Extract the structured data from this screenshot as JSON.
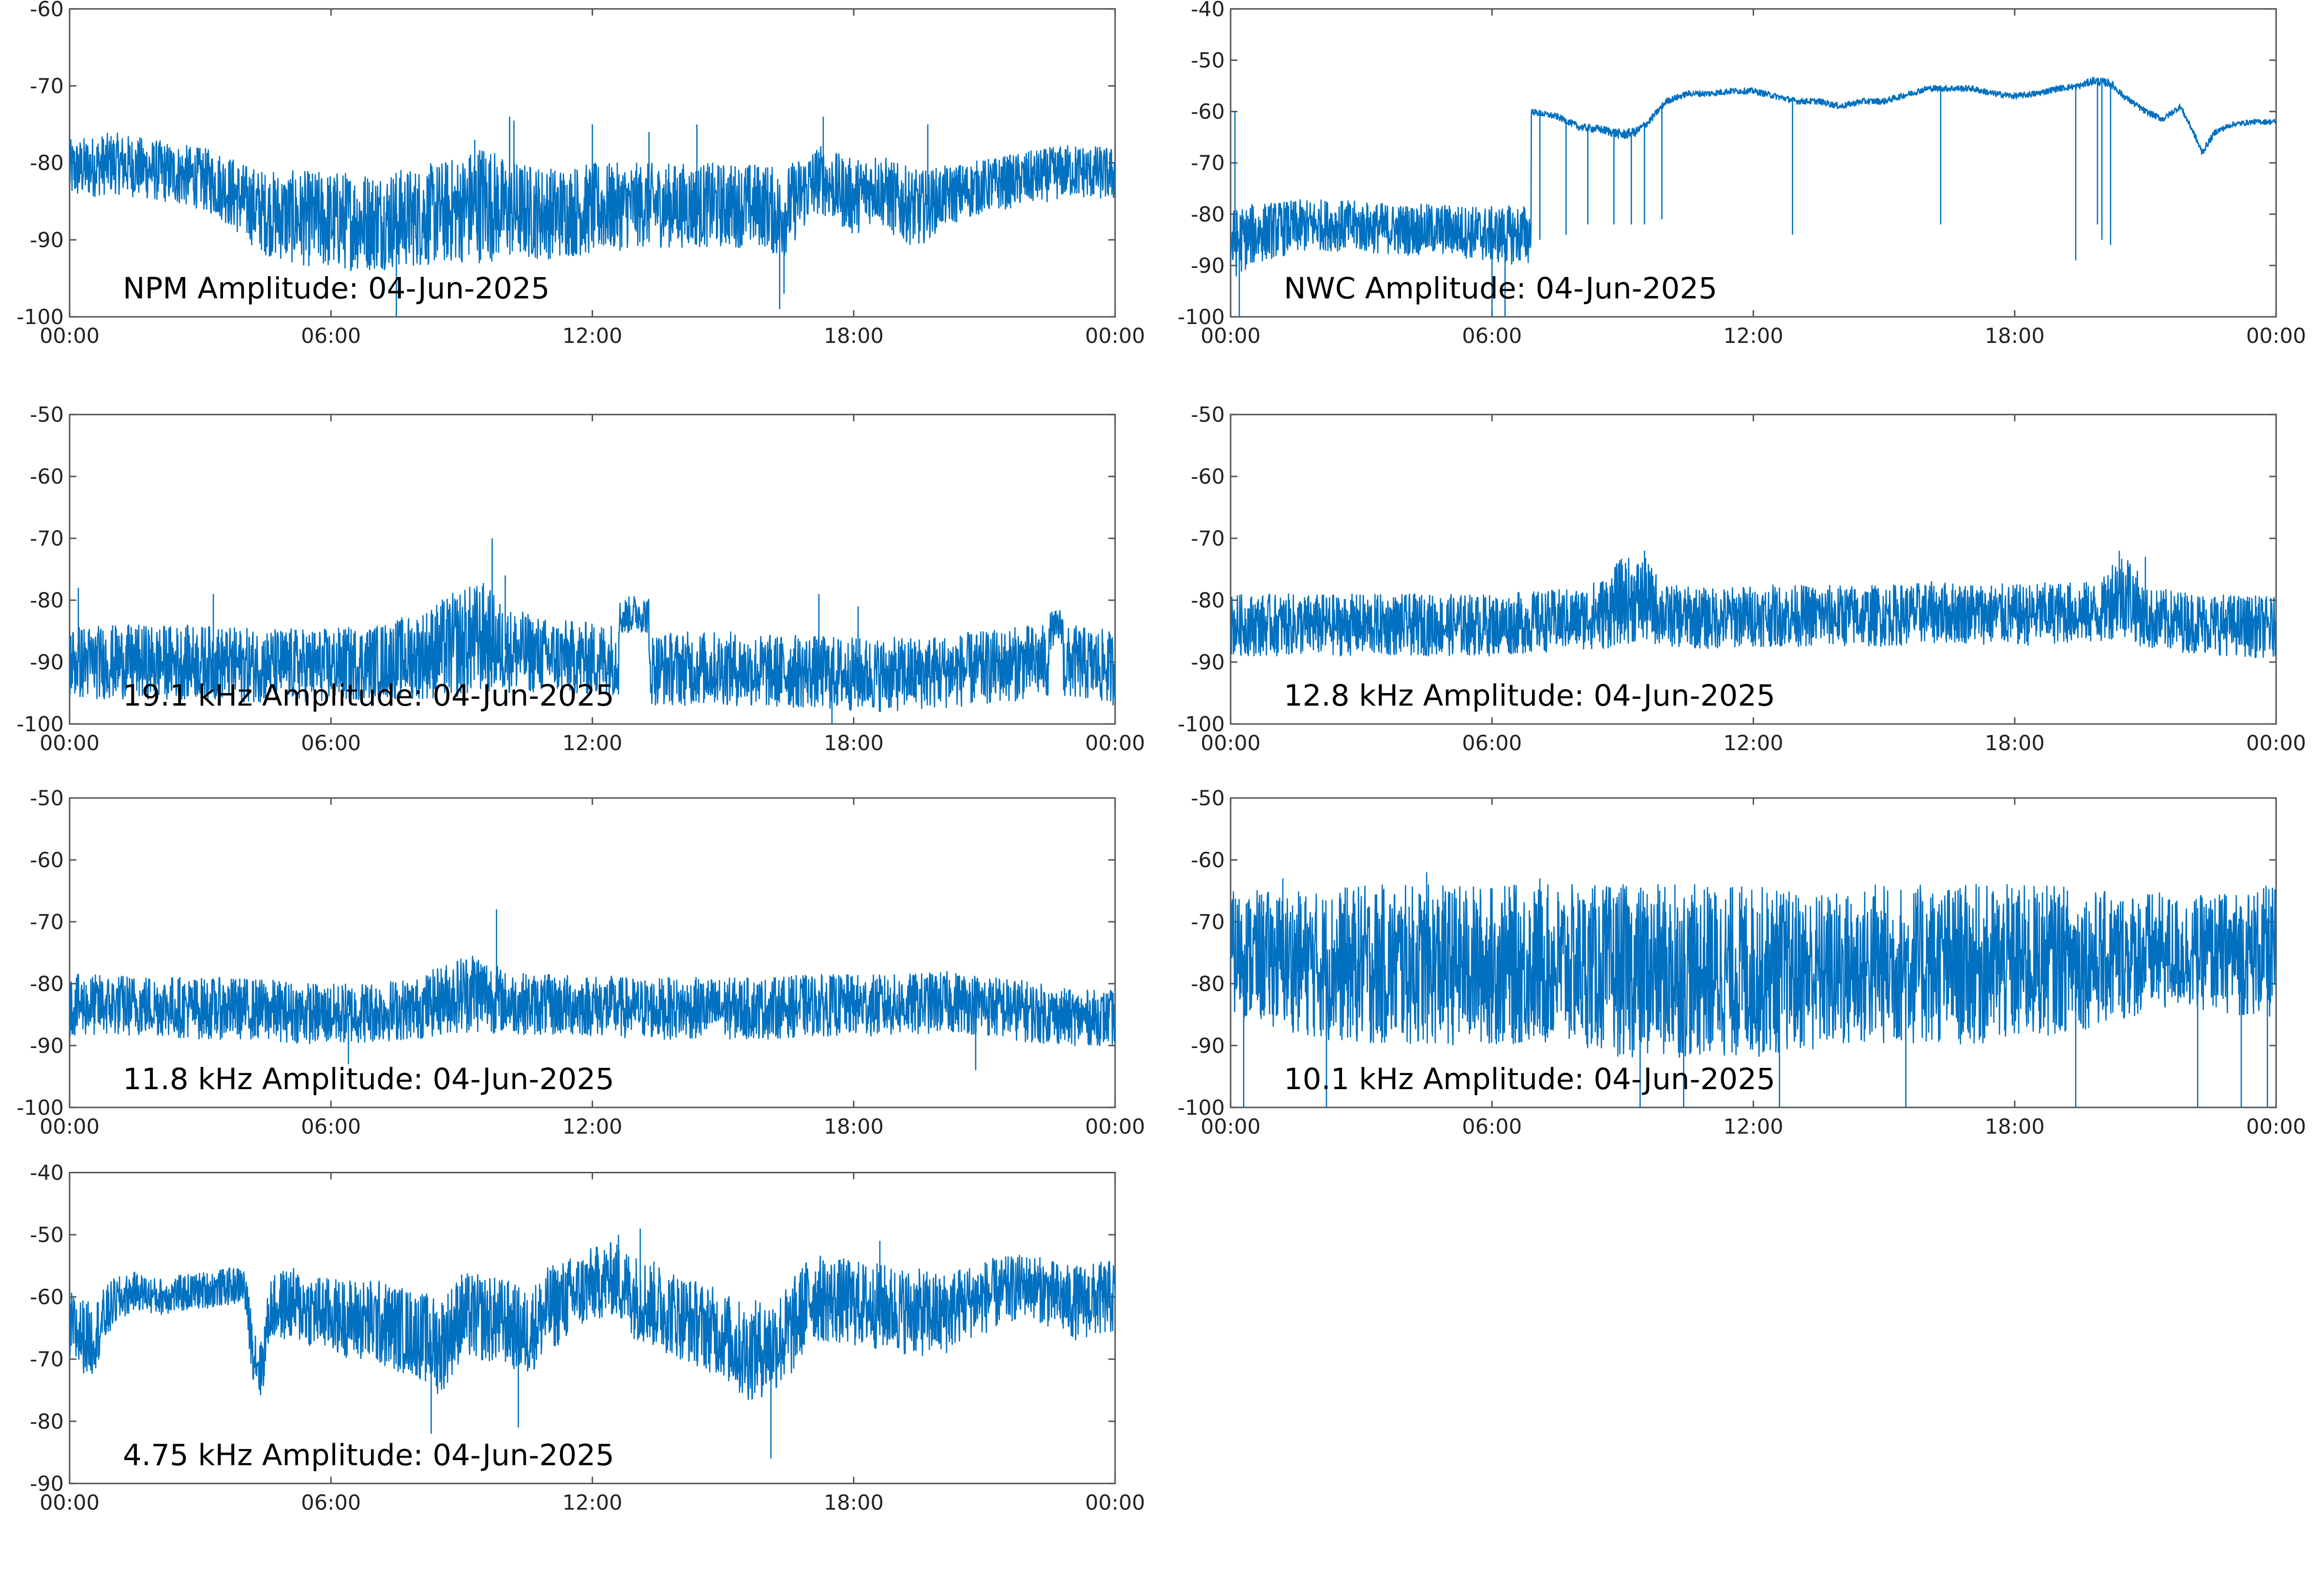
{
  "colors": {
    "series": "#0070c0",
    "frame": "#555555",
    "text": "#222222"
  },
  "chart_data": [
    {
      "type": "line",
      "title": "NPM Amplitude: 04-Jun-2025",
      "xticks": [
        "00:00",
        "06:00",
        "12:00",
        "18:00",
        "00:00"
      ],
      "xlim": [
        0,
        24
      ],
      "ylim": [
        -100,
        -60
      ],
      "yticks": [
        -60,
        -70,
        -80,
        -90,
        -100
      ],
      "grid": false,
      "series": [
        {
          "x": [
            0,
            1,
            2,
            3,
            3.5,
            4,
            4.5,
            5,
            6,
            7,
            8,
            9,
            9.5,
            10,
            11,
            12,
            13,
            14,
            15,
            16,
            16.3,
            16.8,
            17.2,
            17.5,
            18,
            18.5,
            19,
            19.5,
            20,
            21,
            22,
            23,
            24
          ],
          "y": [
            -81,
            -80,
            -81,
            -82,
            -83,
            -85,
            -86.5,
            -87,
            -87.5,
            -87.5,
            -87,
            -86,
            -85,
            -86,
            -86.5,
            -86,
            -85.5,
            -85.5,
            -85.5,
            -85.5,
            -87,
            -84,
            -82,
            -83,
            -84.5,
            -83,
            -85,
            -86,
            -84.5,
            -83,
            -82,
            -81,
            -81.5
          ],
          "spread": [
            4,
            4,
            4,
            4,
            4.5,
            5,
            5.5,
            6,
            6.5,
            6.5,
            6.5,
            7,
            8,
            6.5,
            6,
            6,
            5.5,
            5.5,
            5.5,
            5.5,
            6,
            5,
            4.5,
            4.5,
            5,
            4.5,
            5,
            5,
            4,
            3.5,
            3.5,
            3.5,
            3.5
          ],
          "spikes": [
            [
              7.5,
              -100
            ],
            [
              9.3,
              -77
            ],
            [
              10.1,
              -74
            ],
            [
              10.2,
              -74.5
            ],
            [
              12,
              -75
            ],
            [
              13.3,
              -76
            ],
            [
              14.4,
              -75
            ],
            [
              16.3,
              -99
            ],
            [
              16.4,
              -97
            ],
            [
              17.3,
              -74
            ],
            [
              19.7,
              -75
            ]
          ]
        }
      ]
    },
    {
      "type": "line",
      "title": "NWC Amplitude: 04-Jun-2025",
      "xticks": [
        "00:00",
        "06:00",
        "12:00",
        "18:00",
        "00:00"
      ],
      "xlim": [
        0,
        24
      ],
      "ylim": [
        -100,
        -40
      ],
      "yticks": [
        -40,
        -50,
        -60,
        -70,
        -80,
        -90,
        -100
      ],
      "grid": false,
      "series": [
        {
          "x": [
            0,
            0.5,
            1,
            2,
            3,
            4,
            5,
            6,
            6.9,
            6.9,
            7.5,
            8,
            8.5,
            9,
            9.3,
            9.6,
            10,
            10.5,
            11,
            11.5,
            12,
            12.5,
            13,
            13.5,
            14,
            14.5,
            15,
            16,
            17,
            17.5,
            18,
            18.5,
            19,
            19.5,
            19.8,
            20.2,
            20.5,
            21,
            21.4,
            21.8,
            22.1,
            22.3,
            22.6,
            23,
            23.5,
            24
          ],
          "y": [
            -86,
            -84,
            -83,
            -82,
            -82.5,
            -83,
            -83,
            -84,
            -84,
            -60,
            -61,
            -63,
            -63.5,
            -64.5,
            -64,
            -62,
            -58,
            -56.5,
            -56.5,
            -56,
            -56,
            -57,
            -58,
            -58,
            -59,
            -58,
            -58,
            -55.5,
            -55.5,
            -56.5,
            -57,
            -56.5,
            -55.5,
            -55,
            -54,
            -54.5,
            -57,
            -60,
            -61.5,
            -59,
            -64,
            -68,
            -64,
            -62.5,
            -62,
            -62
          ],
          "spread": [
            7,
            6,
            5.5,
            5,
            5,
            5,
            5,
            5.5,
            6,
            0.6,
            0.6,
            0.7,
            0.8,
            1,
            0.9,
            0.7,
            0.6,
            0.6,
            0.6,
            0.6,
            0.6,
            0.6,
            0.6,
            0.6,
            0.6,
            0.6,
            0.6,
            0.6,
            0.6,
            0.6,
            0.6,
            0.6,
            0.6,
            0.6,
            0.8,
            0.8,
            0.6,
            0.6,
            0.6,
            0.6,
            0.6,
            0.7,
            0.6,
            0.5,
            0.5,
            0.5
          ],
          "spikes": [
            [
              0.1,
              -60
            ],
            [
              0.2,
              -100
            ],
            [
              6,
              -100
            ],
            [
              6.3,
              -100
            ],
            [
              7.1,
              -85
            ],
            [
              7.7,
              -84
            ],
            [
              8.2,
              -82
            ],
            [
              8.8,
              -82
            ],
            [
              9.2,
              -82
            ],
            [
              9.5,
              -82
            ],
            [
              9.9,
              -81
            ],
            [
              12.9,
              -84
            ],
            [
              16.3,
              -82
            ],
            [
              19.4,
              -89
            ],
            [
              19.9,
              -82
            ],
            [
              20.0,
              -85
            ],
            [
              20.2,
              -86
            ]
          ]
        }
      ]
    },
    {
      "type": "line",
      "title": "19.1 kHz Amplitude: 04-Jun-2025",
      "xticks": [
        "00:00",
        "06:00",
        "12:00",
        "18:00",
        "00:00"
      ],
      "xlim": [
        0,
        24
      ],
      "ylim": [
        -100,
        -50
      ],
      "yticks": [
        -50,
        -60,
        -70,
        -80,
        -90,
        -100
      ],
      "grid": false,
      "series": [
        {
          "x": [
            0,
            1,
            2,
            3,
            4,
            5,
            6,
            7,
            8,
            9,
            9.5,
            10,
            11,
            12,
            12.6,
            12.6,
            13,
            13.3,
            13.3,
            14,
            15,
            16,
            17,
            18,
            19,
            20,
            21,
            22,
            22.5,
            22.5,
            22.8,
            22.8,
            23,
            24
          ],
          "y": [
            -90,
            -90,
            -90,
            -90,
            -90.5,
            -90.5,
            -90.5,
            -90,
            -89,
            -87,
            -86,
            -88,
            -89,
            -89.5,
            -89.5,
            -83,
            -82,
            -82.5,
            -91,
            -91,
            -91,
            -91.5,
            -91.5,
            -92,
            -92,
            -91.5,
            -91,
            -90,
            -90,
            -85,
            -84,
            -91,
            -90,
            -91
          ],
          "spread": [
            6,
            6,
            6,
            6,
            6,
            6,
            6,
            6,
            7,
            9,
            9,
            7,
            6,
            6,
            6,
            3,
            3,
            3,
            6,
            6,
            6,
            6,
            6,
            6,
            6,
            6,
            6,
            6,
            6,
            3,
            3,
            6,
            6,
            6
          ],
          "spikes": [
            [
              0.2,
              -78
            ],
            [
              3.3,
              -79
            ],
            [
              9.7,
              -70
            ],
            [
              10,
              -76
            ],
            [
              17.2,
              -79
            ],
            [
              18.1,
              -81
            ],
            [
              17.5,
              -100
            ]
          ]
        }
      ]
    },
    {
      "type": "line",
      "title": "12.8 kHz Amplitude: 04-Jun-2025",
      "xticks": [
        "00:00",
        "06:00",
        "12:00",
        "18:00",
        "00:00"
      ],
      "xlim": [
        0,
        24
      ],
      "ylim": [
        -100,
        -50
      ],
      "yticks": [
        -50,
        -60,
        -70,
        -80,
        -90,
        -100
      ],
      "grid": false,
      "series": [
        {
          "x": [
            0,
            1,
            2,
            3,
            4,
            5,
            6,
            7,
            8,
            8.6,
            9,
            9.5,
            10,
            11,
            12,
            13,
            14,
            15,
            16,
            17,
            18,
            19,
            20,
            20.3,
            20.6,
            21,
            22,
            23,
            24
          ],
          "y": [
            -84,
            -84,
            -84,
            -84,
            -84,
            -84,
            -84,
            -83.5,
            -83,
            -82,
            -80,
            -80,
            -82.5,
            -83,
            -82.5,
            -82.5,
            -82.5,
            -82.5,
            -82,
            -82,
            -82.5,
            -82,
            -82,
            -79,
            -79,
            -83,
            -83.5,
            -84,
            -84.5
          ],
          "spread": [
            5,
            5,
            5,
            5,
            5,
            5,
            5,
            5,
            5,
            6,
            7,
            7,
            5,
            5,
            5,
            5,
            5,
            5,
            5,
            5,
            5,
            5,
            5,
            7,
            7,
            5,
            5,
            5,
            5
          ],
          "spikes": [
            [
              9.5,
              -72
            ],
            [
              20.4,
              -72
            ],
            [
              21,
              -73
            ]
          ]
        }
      ]
    },
    {
      "type": "line",
      "title": "11.8 kHz Amplitude: 04-Jun-2025",
      "xticks": [
        "00:00",
        "06:00",
        "12:00",
        "18:00",
        "00:00"
      ],
      "xlim": [
        0,
        24
      ],
      "ylim": [
        -100,
        -50
      ],
      "yticks": [
        -50,
        -60,
        -70,
        -80,
        -90,
        -100
      ],
      "grid": false,
      "series": [
        {
          "x": [
            0,
            1,
            2,
            3,
            4,
            5,
            6,
            7,
            8,
            8.8,
            9.3,
            10,
            11,
            12,
            13,
            14,
            15,
            16,
            17,
            18,
            19,
            20,
            20.5,
            21,
            22,
            23,
            24
          ],
          "y": [
            -83.5,
            -83.5,
            -83.5,
            -84,
            -84,
            -84.5,
            -85,
            -84.5,
            -84,
            -82,
            -81,
            -83,
            -83.5,
            -83.5,
            -84,
            -84,
            -84,
            -84,
            -83.5,
            -83.5,
            -83.5,
            -83,
            -83,
            -83.5,
            -84.5,
            -85.5,
            -85.5
          ],
          "spread": [
            5,
            5,
            5,
            5,
            5,
            5,
            5,
            5,
            5,
            6,
            7,
            5,
            5,
            5,
            5,
            5,
            5,
            5,
            5,
            5,
            5,
            5,
            5,
            5,
            5,
            4.5,
            4.5
          ],
          "spikes": [
            [
              9.8,
              -68
            ],
            [
              6.4,
              -93
            ],
            [
              20.8,
              -94
            ]
          ]
        }
      ]
    },
    {
      "type": "line",
      "title": "10.1 kHz Amplitude: 04-Jun-2025",
      "xticks": [
        "00:00",
        "06:00",
        "12:00",
        "18:00",
        "00:00"
      ],
      "xlim": [
        0,
        24
      ],
      "ylim": [
        -100,
        -50
      ],
      "yticks": [
        -50,
        -60,
        -70,
        -80,
        -90,
        -100
      ],
      "grid": false,
      "series": [
        {
          "x": [
            0,
            1,
            2,
            3,
            4,
            5,
            6,
            7,
            8,
            9,
            10,
            11,
            12,
            13,
            14,
            15,
            16,
            17,
            18,
            19,
            20,
            21,
            22,
            23,
            24
          ],
          "y": [
            -75,
            -76,
            -77,
            -77,
            -77,
            -77,
            -77,
            -77,
            -77,
            -78,
            -78,
            -78,
            -78,
            -78,
            -78,
            -77,
            -77,
            -77,
            -77,
            -76,
            -76,
            -75,
            -75,
            -75,
            -75
          ],
          "spread": [
            10,
            11,
            12,
            13,
            13,
            13,
            13,
            13,
            13,
            14,
            14,
            14,
            14,
            13,
            13,
            13,
            13,
            13,
            13,
            12,
            11,
            10,
            9,
            10,
            11
          ],
          "spikes": [
            [
              1.2,
              -63
            ],
            [
              4.5,
              -62
            ],
            [
              7.1,
              -63
            ],
            [
              10.2,
              -64
            ],
            [
              14.8,
              -64
            ],
            [
              0.3,
              -100
            ],
            [
              2.2,
              -100
            ],
            [
              9.4,
              -100
            ],
            [
              10.4,
              -100
            ],
            [
              12.6,
              -100
            ],
            [
              15.5,
              -100
            ],
            [
              19.4,
              -100
            ],
            [
              22.2,
              -100
            ],
            [
              23.2,
              -100
            ],
            [
              23.8,
              -100
            ]
          ]
        }
      ]
    },
    {
      "type": "line",
      "title": "4.75 kHz Amplitude: 04-Jun-2025",
      "xticks": [
        "00:00",
        "06:00",
        "12:00",
        "18:00",
        "00:00"
      ],
      "xlim": [
        0,
        24
      ],
      "ylim": [
        -90,
        -40
      ],
      "yticks": [
        -40,
        -50,
        -60,
        -70,
        -80,
        -90
      ],
      "grid": false,
      "series": [
        {
          "x": [
            0,
            0.5,
            1,
            1.5,
            2,
            3,
            4,
            4.2,
            4.4,
            4.6,
            5,
            6,
            7,
            8,
            8.5,
            9,
            10,
            10.5,
            11,
            12,
            12.5,
            13,
            14,
            15,
            15.5,
            16,
            16.5,
            17,
            18,
            19,
            20,
            20.5,
            21,
            22,
            23,
            24
          ],
          "y": [
            -65,
            -67,
            -61,
            -59,
            -60,
            -59,
            -58,
            -68,
            -72,
            -62,
            -61,
            -63,
            -64,
            -66,
            -68,
            -63,
            -64,
            -66,
            -62,
            -58,
            -57,
            -60,
            -63,
            -66,
            -69,
            -68,
            -66,
            -60,
            -61,
            -62,
            -63,
            -61,
            -60,
            -58,
            -61,
            -60
          ],
          "spread": [
            6,
            6,
            4,
            3,
            3,
            3,
            3,
            5,
            5,
            5,
            6,
            6,
            7,
            7,
            8,
            7,
            7,
            7,
            7,
            6,
            6,
            7,
            7,
            7,
            8,
            8,
            8,
            7,
            7,
            7,
            7,
            6,
            6,
            5,
            6,
            6
          ],
          "spikes": [
            [
              12.6,
              -50
            ],
            [
              13.1,
              -49
            ],
            [
              10.3,
              -81
            ],
            [
              8.3,
              -82
            ],
            [
              16.1,
              -86
            ],
            [
              18.6,
              -51
            ]
          ]
        }
      ]
    }
  ]
}
